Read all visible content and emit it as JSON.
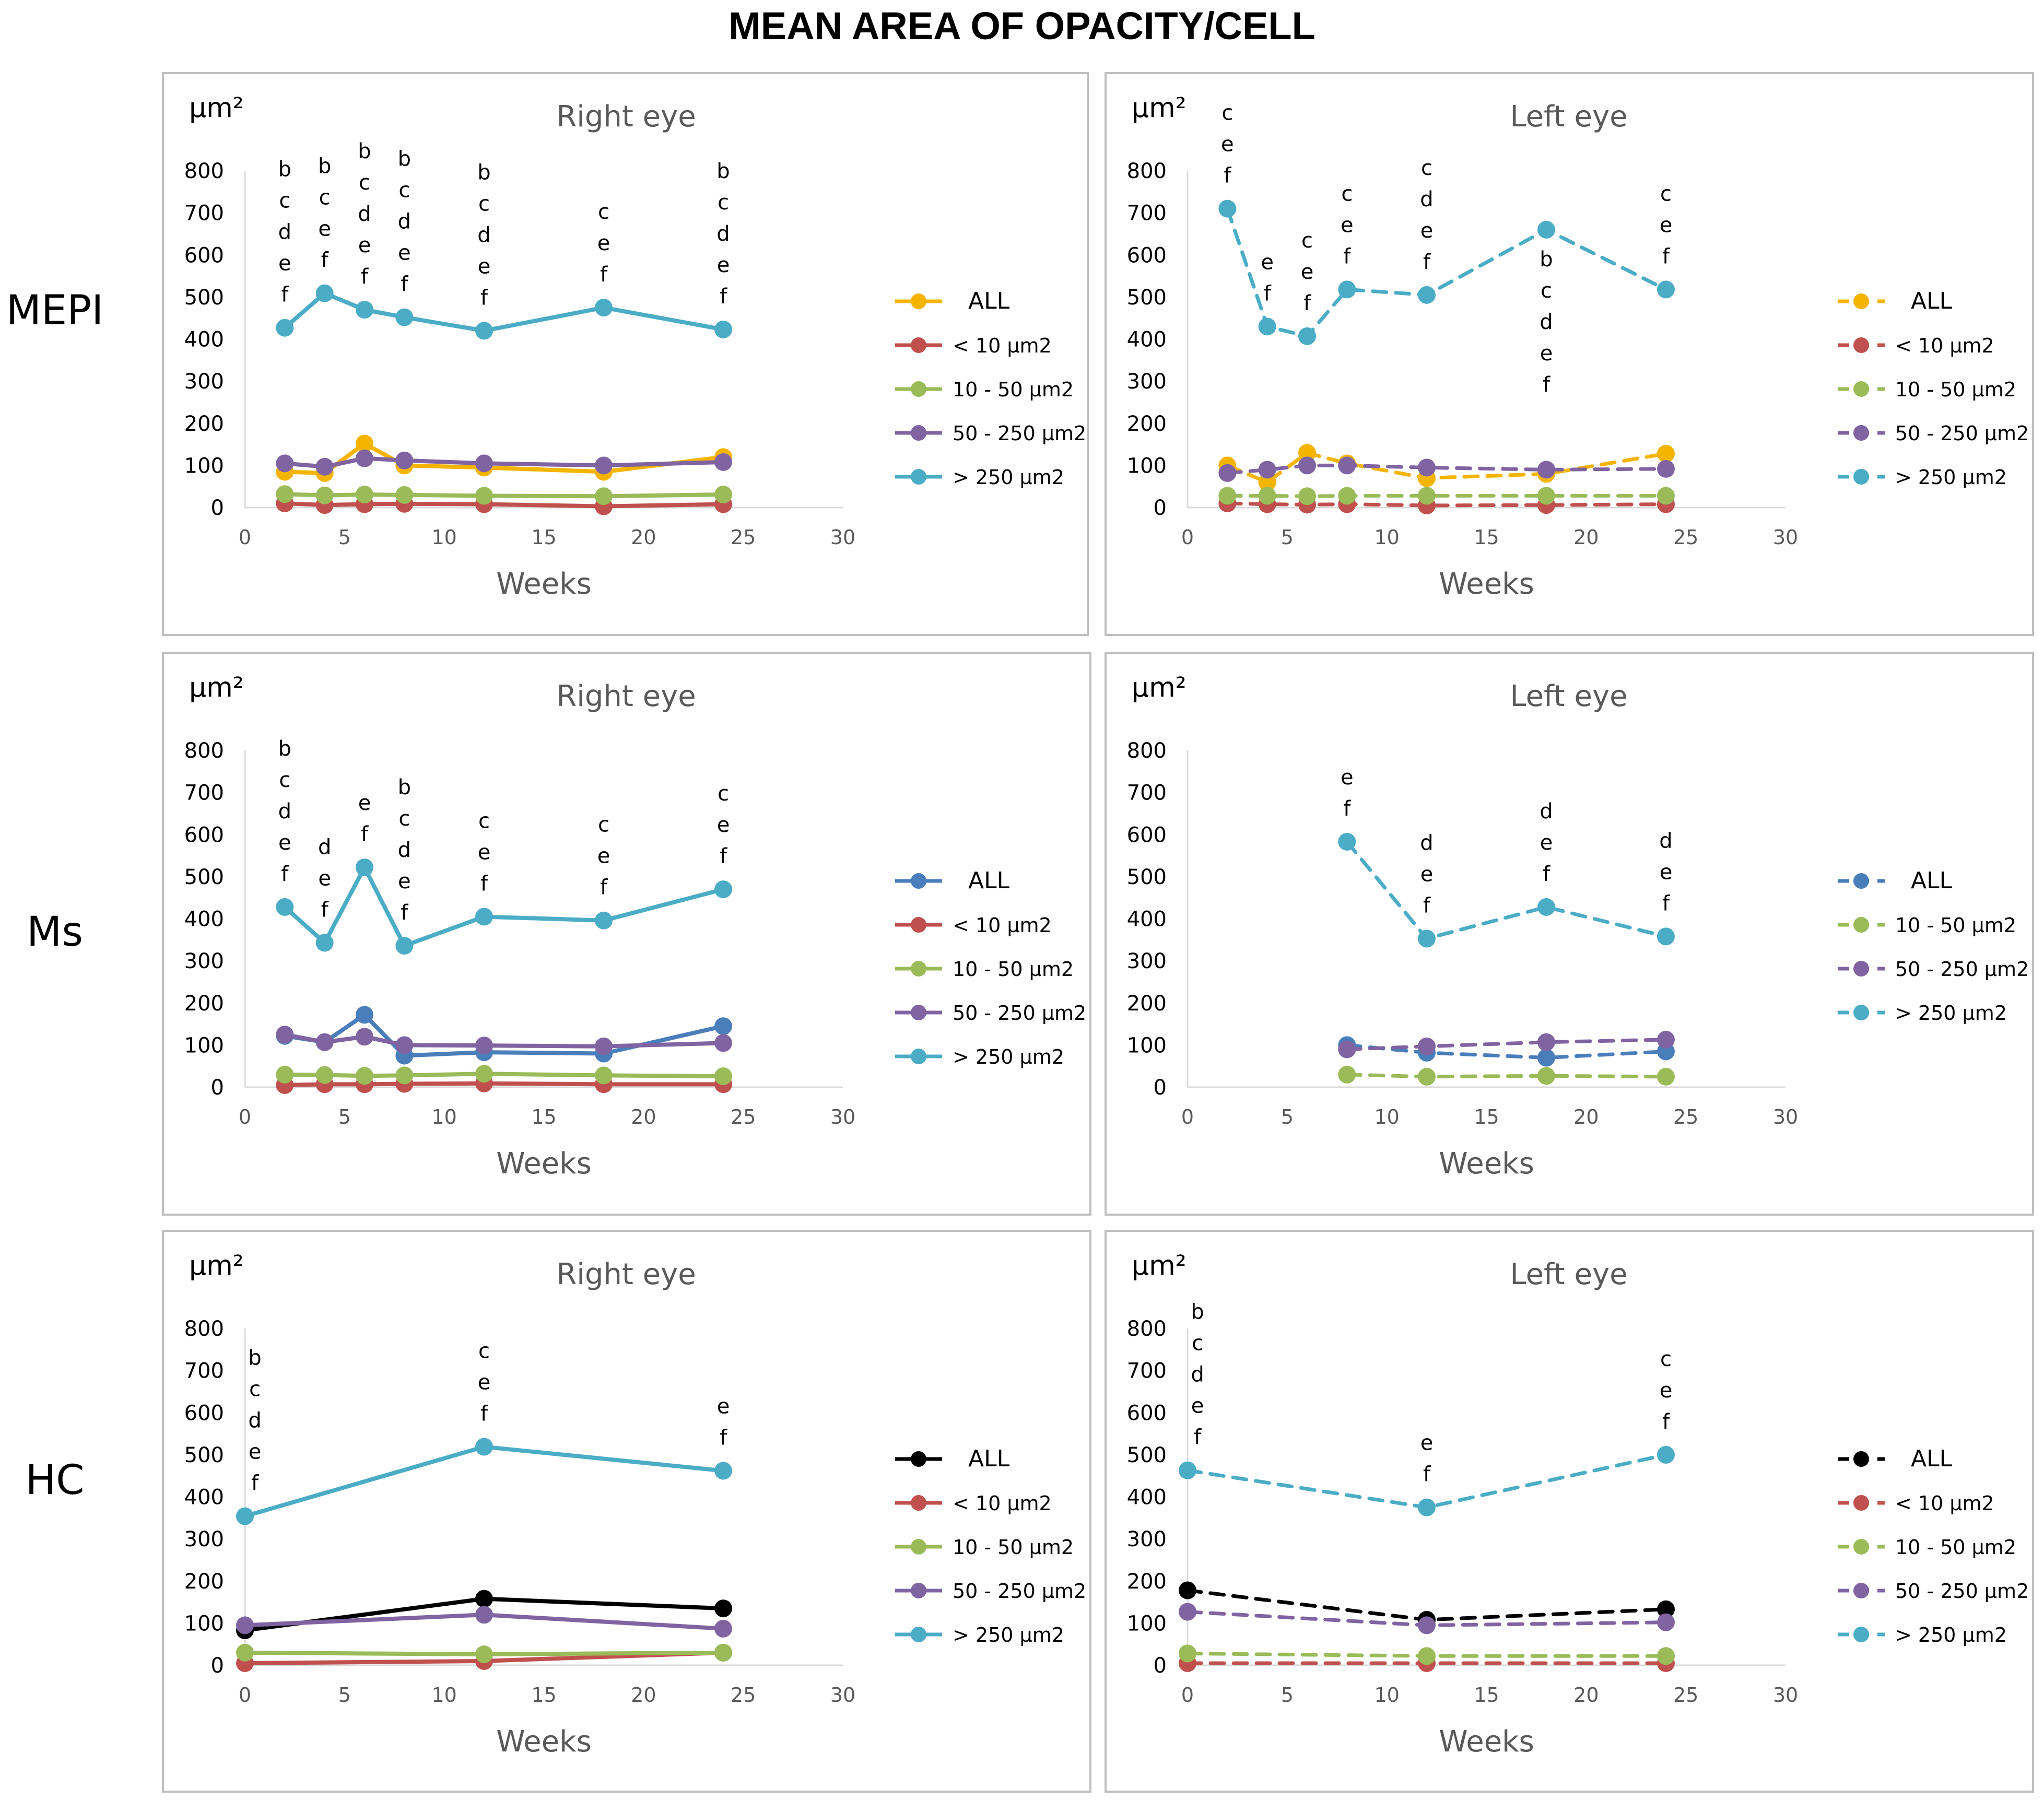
{
  "title": "MEAN AREA OF OPACITY/CELL",
  "row_labels": [
    "MEPI",
    "Ms",
    "HC"
  ],
  "colors": {
    "all_mepi": "#F5B400",
    "all_ms": "#4A7EBB",
    "all_hc": "#000000",
    "lt10": "#C0504D",
    "10to50": "#9BBB59",
    "50to250": "#8064A2",
    "gt250": "#4BACC6",
    "axis": "#D9D9D9",
    "border": "#BFBFBF"
  },
  "chart_data": [
    {
      "type": "line",
      "title": "Right eye",
      "group": "MEPI",
      "unit": "µm²",
      "xlabel": "Weeks",
      "xlim": [
        0,
        30
      ],
      "ylim": [
        0,
        800
      ],
      "xticks": [
        0,
        5,
        10,
        15,
        20,
        25,
        30
      ],
      "yticks": [
        0,
        100,
        200,
        300,
        400,
        500,
        600,
        700,
        800
      ],
      "dashed": false,
      "grid": false,
      "series": [
        {
          "name": "ALL",
          "color": "#F5B400",
          "x": [
            2,
            4,
            6,
            8,
            12,
            18,
            24
          ],
          "values": [
            85,
            82,
            152,
            100,
            95,
            85,
            120
          ]
        },
        {
          "name": "< 10 µm2",
          "color": "#C0504D",
          "x": [
            2,
            4,
            6,
            8,
            12,
            18,
            24
          ],
          "values": [
            10,
            6,
            8,
            9,
            8,
            3,
            8
          ]
        },
        {
          "name": "10 - 50 µm2",
          "color": "#9BBB59",
          "x": [
            2,
            4,
            6,
            8,
            12,
            18,
            24
          ],
          "values": [
            32,
            29,
            31,
            30,
            28,
            27,
            31
          ]
        },
        {
          "name": "50 - 250  µm2",
          "color": "#8064A2",
          "x": [
            2,
            4,
            6,
            8,
            12,
            18,
            24
          ],
          "values": [
            105,
            97,
            117,
            112,
            105,
            100,
            108
          ]
        },
        {
          "name": "> 250 µm2",
          "color": "#4BACC6",
          "x": [
            2,
            4,
            6,
            8,
            12,
            18,
            24
          ],
          "values": [
            427,
            509,
            470,
            452,
            420,
            475,
            423
          ]
        }
      ],
      "annotations": [
        {
          "x": 2,
          "letters": [
            "b",
            "c",
            "d",
            "e",
            "f"
          ],
          "anchor_y": 427,
          "pos": "above"
        },
        {
          "x": 4,
          "letters": [
            "b",
            "c",
            "e",
            "f"
          ],
          "anchor_y": 509,
          "pos": "above"
        },
        {
          "x": 6,
          "letters": [
            "b",
            "c",
            "d",
            "e",
            "f"
          ],
          "anchor_y": 470,
          "pos": "above"
        },
        {
          "x": 8,
          "letters": [
            "b",
            "c",
            "d",
            "e",
            "f"
          ],
          "anchor_y": 452,
          "pos": "above"
        },
        {
          "x": 12,
          "letters": [
            "b",
            "c",
            "d",
            "e",
            "f"
          ],
          "anchor_y": 420,
          "pos": "above"
        },
        {
          "x": 18,
          "letters": [
            "c",
            "e",
            "f"
          ],
          "anchor_y": 475,
          "pos": "above"
        },
        {
          "x": 24,
          "letters": [
            "b",
            "c",
            "d",
            "e",
            "f"
          ],
          "anchor_y": 423,
          "pos": "above"
        }
      ]
    },
    {
      "type": "line",
      "title": "Left eye",
      "group": "MEPI",
      "unit": "µm²",
      "xlabel": "Weeks",
      "xlim": [
        0,
        30
      ],
      "ylim": [
        0,
        800
      ],
      "xticks": [
        0,
        5,
        10,
        15,
        20,
        25,
        30
      ],
      "yticks": [
        0,
        100,
        200,
        300,
        400,
        500,
        600,
        700,
        800
      ],
      "dashed": true,
      "grid": false,
      "series": [
        {
          "name": "ALL",
          "color": "#F5B400",
          "x": [
            2,
            4,
            6,
            8,
            12,
            18,
            24
          ],
          "values": [
            100,
            60,
            130,
            105,
            70,
            80,
            128
          ]
        },
        {
          "name": "< 10 µm2",
          "color": "#C0504D",
          "x": [
            2,
            4,
            6,
            8,
            12,
            18,
            24
          ],
          "values": [
            10,
            8,
            7,
            8,
            5,
            6,
            8
          ]
        },
        {
          "name": "10 - 50 µm2",
          "color": "#9BBB59",
          "x": [
            2,
            4,
            6,
            8,
            12,
            18,
            24
          ],
          "values": [
            28,
            28,
            27,
            28,
            28,
            28,
            28
          ]
        },
        {
          "name": "50 - 250   µm2",
          "color": "#8064A2",
          "x": [
            2,
            4,
            6,
            8,
            12,
            18,
            24
          ],
          "values": [
            82,
            90,
            100,
            100,
            95,
            90,
            92
          ]
        },
        {
          "name": "> 250 µm2",
          "color": "#4BACC6",
          "x": [
            2,
            4,
            6,
            8,
            12,
            18,
            24
          ],
          "values": [
            710,
            430,
            407,
            518,
            505,
            660,
            518
          ]
        }
      ],
      "annotations": [
        {
          "x": 2,
          "letters": [
            "c",
            "e",
            "f"
          ],
          "anchor_y": 710,
          "pos": "above"
        },
        {
          "x": 4,
          "letters": [
            "e",
            "f"
          ],
          "anchor_y": 430,
          "pos": "above"
        },
        {
          "x": 6,
          "letters": [
            "c",
            "e",
            "f"
          ],
          "anchor_y": 407,
          "pos": "above"
        },
        {
          "x": 8,
          "letters": [
            "c",
            "e",
            "f"
          ],
          "anchor_y": 518,
          "pos": "above"
        },
        {
          "x": 12,
          "letters": [
            "c",
            "d",
            "e",
            "f"
          ],
          "anchor_y": 505,
          "pos": "above"
        },
        {
          "x": 18,
          "letters": [
            "b",
            "c",
            "d",
            "e",
            "f"
          ],
          "anchor_y": 660,
          "pos": "below"
        },
        {
          "x": 24,
          "letters": [
            "c",
            "e",
            "f"
          ],
          "anchor_y": 518,
          "pos": "above"
        }
      ]
    },
    {
      "type": "line",
      "title": "Right eye",
      "group": "Ms",
      "unit": "µm²",
      "xlabel": "Weeks",
      "xlim": [
        0,
        30
      ],
      "ylim": [
        0,
        800
      ],
      "xticks": [
        0,
        5,
        10,
        15,
        20,
        25,
        30
      ],
      "yticks": [
        0,
        100,
        200,
        300,
        400,
        500,
        600,
        700,
        800
      ],
      "dashed": false,
      "grid": false,
      "series": [
        {
          "name": "ALL",
          "color": "#4A7EBB",
          "x": [
            2,
            4,
            6,
            8,
            12,
            18,
            24
          ],
          "values": [
            122,
            107,
            172,
            75,
            83,
            80,
            145
          ]
        },
        {
          "name": "< 10 µm2",
          "color": "#C0504D",
          "x": [
            2,
            4,
            6,
            8,
            12,
            18,
            24
          ],
          "values": [
            5,
            7,
            7,
            8,
            9,
            7,
            7
          ]
        },
        {
          "name": "10 - 50 µm2",
          "color": "#9BBB59",
          "x": [
            2,
            4,
            6,
            8,
            12,
            18,
            24
          ],
          "values": [
            30,
            29,
            27,
            28,
            32,
            28,
            26
          ]
        },
        {
          "name": "50 - 250 µm2",
          "color": "#8064A2",
          "x": [
            2,
            4,
            6,
            8,
            12,
            18,
            24
          ],
          "values": [
            125,
            107,
            120,
            100,
            99,
            97,
            105
          ]
        },
        {
          "name": "> 250 µm2",
          "color": "#4BACC6",
          "x": [
            2,
            4,
            6,
            8,
            12,
            18,
            24
          ],
          "values": [
            428,
            343,
            522,
            336,
            405,
            396,
            470
          ]
        }
      ],
      "annotations": [
        {
          "x": 2,
          "letters": [
            "b",
            "c",
            "d",
            "e",
            "f"
          ],
          "anchor_y": 428,
          "pos": "above"
        },
        {
          "x": 4,
          "letters": [
            "d",
            "e",
            "f"
          ],
          "anchor_y": 343,
          "pos": "above"
        },
        {
          "x": 6,
          "letters": [
            "e",
            "f"
          ],
          "anchor_y": 522,
          "pos": "above"
        },
        {
          "x": 8,
          "letters": [
            "b",
            "c",
            "d",
            "e",
            "f"
          ],
          "anchor_y": 336,
          "pos": "above"
        },
        {
          "x": 12,
          "letters": [
            "c",
            "e",
            "f"
          ],
          "anchor_y": 405,
          "pos": "above"
        },
        {
          "x": 18,
          "letters": [
            "c",
            "e",
            "f"
          ],
          "anchor_y": 396,
          "pos": "above"
        },
        {
          "x": 24,
          "letters": [
            "c",
            "e",
            "f"
          ],
          "anchor_y": 470,
          "pos": "above"
        }
      ]
    },
    {
      "type": "line",
      "title": "Left eye",
      "group": "Ms",
      "unit": "µm²",
      "xlabel": "Weeks",
      "xlim": [
        0,
        30
      ],
      "ylim": [
        0,
        800
      ],
      "xticks": [
        0,
        5,
        10,
        15,
        20,
        25,
        30
      ],
      "yticks": [
        0,
        100,
        200,
        300,
        400,
        500,
        600,
        700,
        800
      ],
      "dashed": true,
      "grid": false,
      "series": [
        {
          "name": "ALL",
          "color": "#4A7EBB",
          "x": [
            8,
            12,
            18,
            24
          ],
          "values": [
            100,
            82,
            70,
            85
          ]
        },
        {
          "name": "10 - 50 µm2",
          "color": "#9BBB59",
          "x": [
            8,
            12,
            18,
            24
          ],
          "values": [
            30,
            25,
            27,
            25
          ]
        },
        {
          "name": "50 - 250   µm2",
          "color": "#8064A2",
          "x": [
            8,
            12,
            18,
            24
          ],
          "values": [
            90,
            97,
            107,
            113
          ]
        },
        {
          "name": "> 250 µm2",
          "color": "#4BACC6",
          "x": [
            8,
            12,
            18,
            24
          ],
          "values": [
            583,
            353,
            428,
            358
          ]
        }
      ],
      "annotations": [
        {
          "x": 8,
          "letters": [
            "e",
            "f"
          ],
          "anchor_y": 583,
          "pos": "above"
        },
        {
          "x": 12,
          "letters": [
            "d",
            "e",
            "f"
          ],
          "anchor_y": 353,
          "pos": "above"
        },
        {
          "x": 18,
          "letters": [
            "d",
            "e",
            "f"
          ],
          "anchor_y": 428,
          "pos": "above"
        },
        {
          "x": 24,
          "letters": [
            "d",
            "e",
            "f"
          ],
          "anchor_y": 358,
          "pos": "above"
        }
      ]
    },
    {
      "type": "line",
      "title": "Right eye",
      "group": "HC",
      "unit": "µm²",
      "xlabel": "Weeks",
      "xlim": [
        0,
        30
      ],
      "ylim": [
        0,
        800
      ],
      "xticks": [
        0,
        5,
        10,
        15,
        20,
        25,
        30
      ],
      "yticks": [
        0,
        100,
        200,
        300,
        400,
        500,
        600,
        700,
        800
      ],
      "dashed": false,
      "grid": false,
      "series": [
        {
          "name": "ALL",
          "color": "#000000",
          "x": [
            0,
            12,
            24
          ],
          "values": [
            83,
            158,
            135
          ]
        },
        {
          "name": "< 10 µm2",
          "color": "#C0504D",
          "x": [
            0,
            12,
            24
          ],
          "values": [
            5,
            10,
            30
          ]
        },
        {
          "name": "10 - 50 µm2",
          "color": "#9BBB59",
          "x": [
            0,
            12,
            24
          ],
          "values": [
            30,
            26,
            30
          ]
        },
        {
          "name": "50 - 250 µm2",
          "color": "#8064A2",
          "x": [
            0,
            12,
            24
          ],
          "values": [
            95,
            120,
            87
          ]
        },
        {
          "name": "> 250 µm2",
          "color": "#4BACC6",
          "x": [
            0,
            12,
            24
          ],
          "values": [
            354,
            519,
            462
          ]
        }
      ],
      "annotations": [
        {
          "x": 0.5,
          "letters": [
            "b",
            "c",
            "d",
            "e",
            "f"
          ],
          "anchor_y": 354,
          "pos": "above"
        },
        {
          "x": 12,
          "letters": [
            "c",
            "e",
            "f"
          ],
          "anchor_y": 519,
          "pos": "above"
        },
        {
          "x": 24,
          "letters": [
            "e",
            "f"
          ],
          "anchor_y": 462,
          "pos": "above"
        }
      ]
    },
    {
      "type": "line",
      "title": "Left eye",
      "group": "HC",
      "unit": "µm²",
      "xlabel": "Weeks",
      "xlim": [
        0,
        30
      ],
      "ylim": [
        0,
        800
      ],
      "xticks": [
        0,
        5,
        10,
        15,
        20,
        25,
        30
      ],
      "yticks": [
        0,
        100,
        200,
        300,
        400,
        500,
        600,
        700,
        800
      ],
      "dashed": true,
      "grid": false,
      "series": [
        {
          "name": "ALL",
          "color": "#000000",
          "x": [
            0,
            12,
            24
          ],
          "values": [
            178,
            108,
            133
          ]
        },
        {
          "name": "< 10 µm2",
          "color": "#C0504D",
          "x": [
            0,
            12,
            24
          ],
          "values": [
            5,
            5,
            5
          ]
        },
        {
          "name": "10 - 50 µm2",
          "color": "#9BBB59",
          "x": [
            0,
            12,
            24
          ],
          "values": [
            28,
            22,
            22
          ]
        },
        {
          "name": "50 - 250 µm2",
          "color": "#8064A2",
          "x": [
            0,
            12,
            24
          ],
          "values": [
            127,
            95,
            102
          ]
        },
        {
          "name": "> 250 µm2",
          "color": "#4BACC6",
          "x": [
            0,
            12,
            24
          ],
          "values": [
            463,
            375,
            500
          ]
        }
      ],
      "annotations": [
        {
          "x": 0.5,
          "letters": [
            "b",
            "c",
            "d",
            "e",
            "f"
          ],
          "anchor_y": 463,
          "pos": "above"
        },
        {
          "x": 12,
          "letters": [
            "e",
            "f"
          ],
          "anchor_y": 375,
          "pos": "above"
        },
        {
          "x": 24,
          "letters": [
            "c",
            "e",
            "f"
          ],
          "anchor_y": 500,
          "pos": "above"
        }
      ]
    }
  ]
}
